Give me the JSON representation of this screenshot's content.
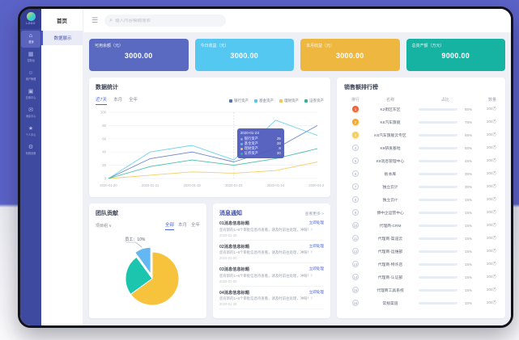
{
  "app": {
    "logo_text": "LOGO",
    "rail_items": [
      {
        "icon": "home-icon",
        "glyph": "⌂",
        "label": "首页",
        "active": true
      },
      {
        "icon": "dashboard-icon",
        "glyph": "▦",
        "label": "控制台",
        "active": false
      },
      {
        "icon": "users-icon",
        "glyph": "☺",
        "label": "用户管理",
        "active": false
      },
      {
        "icon": "apps-icon",
        "glyph": "▣",
        "label": "应用中心",
        "active": false
      },
      {
        "icon": "message-icon",
        "glyph": "✉",
        "label": "消息中心",
        "active": false
      },
      {
        "icon": "profile-icon",
        "glyph": "★",
        "label": "个人中心",
        "active": false
      },
      {
        "icon": "settings-icon",
        "glyph": "⚙",
        "label": "系统设置",
        "active": false
      }
    ],
    "submenu": {
      "title": "首页",
      "active_item": "数据展示"
    },
    "topbar": {
      "search_placeholder": "输入内容模糊搜索"
    }
  },
  "cards": [
    {
      "label": "可用余额（元）",
      "value": "3000.00",
      "color": "#5a6ac0"
    },
    {
      "label": "今日收益（元）",
      "value": "3000.00",
      "color": "#55c8f2"
    },
    {
      "label": "本月收益（元）",
      "value": "3000.00",
      "color": "#eeb73f"
    },
    {
      "label": "总资产额（万元）",
      "value": "9000.00",
      "color": "#16b2a2"
    }
  ],
  "stats_panel": {
    "title": "数据统计",
    "tabs": [
      {
        "label": "近7天",
        "active": true
      },
      {
        "label": "本月",
        "active": false
      },
      {
        "label": "全年",
        "active": false
      }
    ]
  },
  "pie_panel": {
    "title": "团队贡献",
    "select_label": "项目组 ∨",
    "tabs": [
      {
        "label": "全部",
        "active": true
      },
      {
        "label": "本月",
        "active": false
      },
      {
        "label": "全年",
        "active": false
      }
    ]
  },
  "messages_panel": {
    "title": "消息通知",
    "more_label": "查看更多 >",
    "items": [
      {
        "title": "01消息信息标题",
        "desc": "您有新的1~6个审批信息待查看，请及时前往处理，冲呀！！",
        "time": "2020-01-20",
        "action": "立即处理"
      },
      {
        "title": "02消息信息标题",
        "desc": "您有新的1~6个审批信息待查看，请及时前往处理，冲呀！！",
        "time": "2020-01-20",
        "action": "立即处理"
      },
      {
        "title": "03消息信息标题",
        "desc": "您有新的1~6个审批信息待查看，请及时前往处理，冲呀！！",
        "time": "2020-01-20",
        "action": "立即处理"
      },
      {
        "title": "04消息信息标题",
        "desc": "您有新的1~6个审批信息待查看，请及时前往处理，冲呀！！",
        "time": "2020-01-20",
        "action": "立即处理"
      }
    ]
  },
  "ranking_panel": {
    "title": "销售额排行榜",
    "headers": {
      "rank": "排行",
      "name": "名称",
      "ratio": "占比",
      "amount": "数量"
    },
    "rows": [
      {
        "rank": "1",
        "name": "K2街区东区",
        "percent": 80,
        "pct_label": "80%",
        "amount": "200万",
        "medal": "#f2633e"
      },
      {
        "rank": "2",
        "name": "K6汽车旗舰",
        "percent": 75,
        "pct_label": "75%",
        "amount": "200万",
        "medal": "#f7a92e"
      },
      {
        "rank": "3",
        "name": "K6汽车旗舰云专区",
        "percent": 65,
        "pct_label": "65%",
        "amount": "200万",
        "medal": "#f5cf56"
      },
      {
        "rank": "4",
        "name": "K9研发基地",
        "percent": 50,
        "pct_label": "50%",
        "amount": "200万"
      },
      {
        "rank": "5",
        "name": "K9消息管理中心",
        "percent": 45,
        "pct_label": "45%",
        "amount": "200万"
      },
      {
        "rank": "6",
        "name": "板本库",
        "percent": 35,
        "pct_label": "35%",
        "amount": "200万"
      },
      {
        "rank": "7",
        "name": "独立云计",
        "percent": 30,
        "pct_label": "30%",
        "amount": "200万"
      },
      {
        "rank": "8",
        "name": "独立云IT",
        "percent": 15,
        "pct_label": "15%",
        "amount": "200万"
      },
      {
        "rank": "9",
        "name": "博中企运营中心",
        "percent": 15,
        "pct_label": "15%",
        "amount": "200万"
      },
      {
        "rank": "10",
        "name": "代理商-CRM",
        "percent": 15,
        "pct_label": "15%",
        "amount": "200万"
      },
      {
        "rank": "11",
        "name": "代理商-渠道云",
        "percent": 15,
        "pct_label": "15%",
        "amount": "200万"
      },
      {
        "rank": "12",
        "name": "代理商-运维部",
        "percent": 15,
        "pct_label": "15%",
        "amount": "200万"
      },
      {
        "rank": "13",
        "name": "代理商-特许店",
        "percent": 15,
        "pct_label": "15%",
        "amount": "200万"
      },
      {
        "rank": "14",
        "name": "代理商-认证部",
        "percent": 15,
        "pct_label": "15%",
        "amount": "200万"
      },
      {
        "rank": "15",
        "name": "代理商工具系统",
        "percent": 15,
        "pct_label": "15%",
        "amount": "200万"
      },
      {
        "rank": "16",
        "name": "常规渠道",
        "percent": 10,
        "pct_label": "10%",
        "amount": "200万"
      }
    ]
  },
  "chart_data": [
    {
      "type": "line",
      "title": "数据统计",
      "x": [
        "2020-01-20",
        "2020-01-21",
        "2020-01-22",
        "2020-01-23",
        "2020-01-24",
        "2020-01-25"
      ],
      "series": [
        {
          "name": "银行资产",
          "color": "#5470c6",
          "values": [
            0,
            30,
            40,
            25,
            45,
            80
          ]
        },
        {
          "name": "基金资产",
          "color": "#56c8e8",
          "values": [
            0,
            40,
            50,
            28,
            88,
            65
          ]
        },
        {
          "name": "理财资产",
          "color": "#f6c64c",
          "values": [
            0,
            5,
            10,
            8,
            12,
            25
          ]
        },
        {
          "name": "证券资产",
          "color": "#2bb59a",
          "values": [
            0,
            18,
            28,
            20,
            30,
            45
          ]
        }
      ],
      "ylim": [
        0,
        100
      ],
      "yticks": [
        0,
        20,
        40,
        60,
        80,
        100
      ],
      "grid": true,
      "legend_position": "top-right",
      "tooltip": {
        "x_index": 3,
        "title": "2020-01-23",
        "rows": [
          {
            "name": "银行资产",
            "value": "25",
            "color": "#8ea2e0"
          },
          {
            "name": "基金资产",
            "value": "28",
            "color": "#56c8e8"
          },
          {
            "name": "理财资产",
            "value": "8",
            "color": "#f6c64c"
          },
          {
            "name": "证券资产",
            "value": "20",
            "color": "#2bb59a"
          }
        ]
      }
    },
    {
      "type": "pie",
      "title": "团队贡献",
      "slices": [
        {
          "label": "团队",
          "value": 65,
          "color": "#f8c33c"
        },
        {
          "label": "部门",
          "value": 25,
          "color": "#1cc5ae"
        },
        {
          "label": "员工",
          "value": 10,
          "color": "#63b8f2",
          "exploded": true
        }
      ],
      "callout": "员工：10%",
      "legend_position": "none"
    }
  ]
}
